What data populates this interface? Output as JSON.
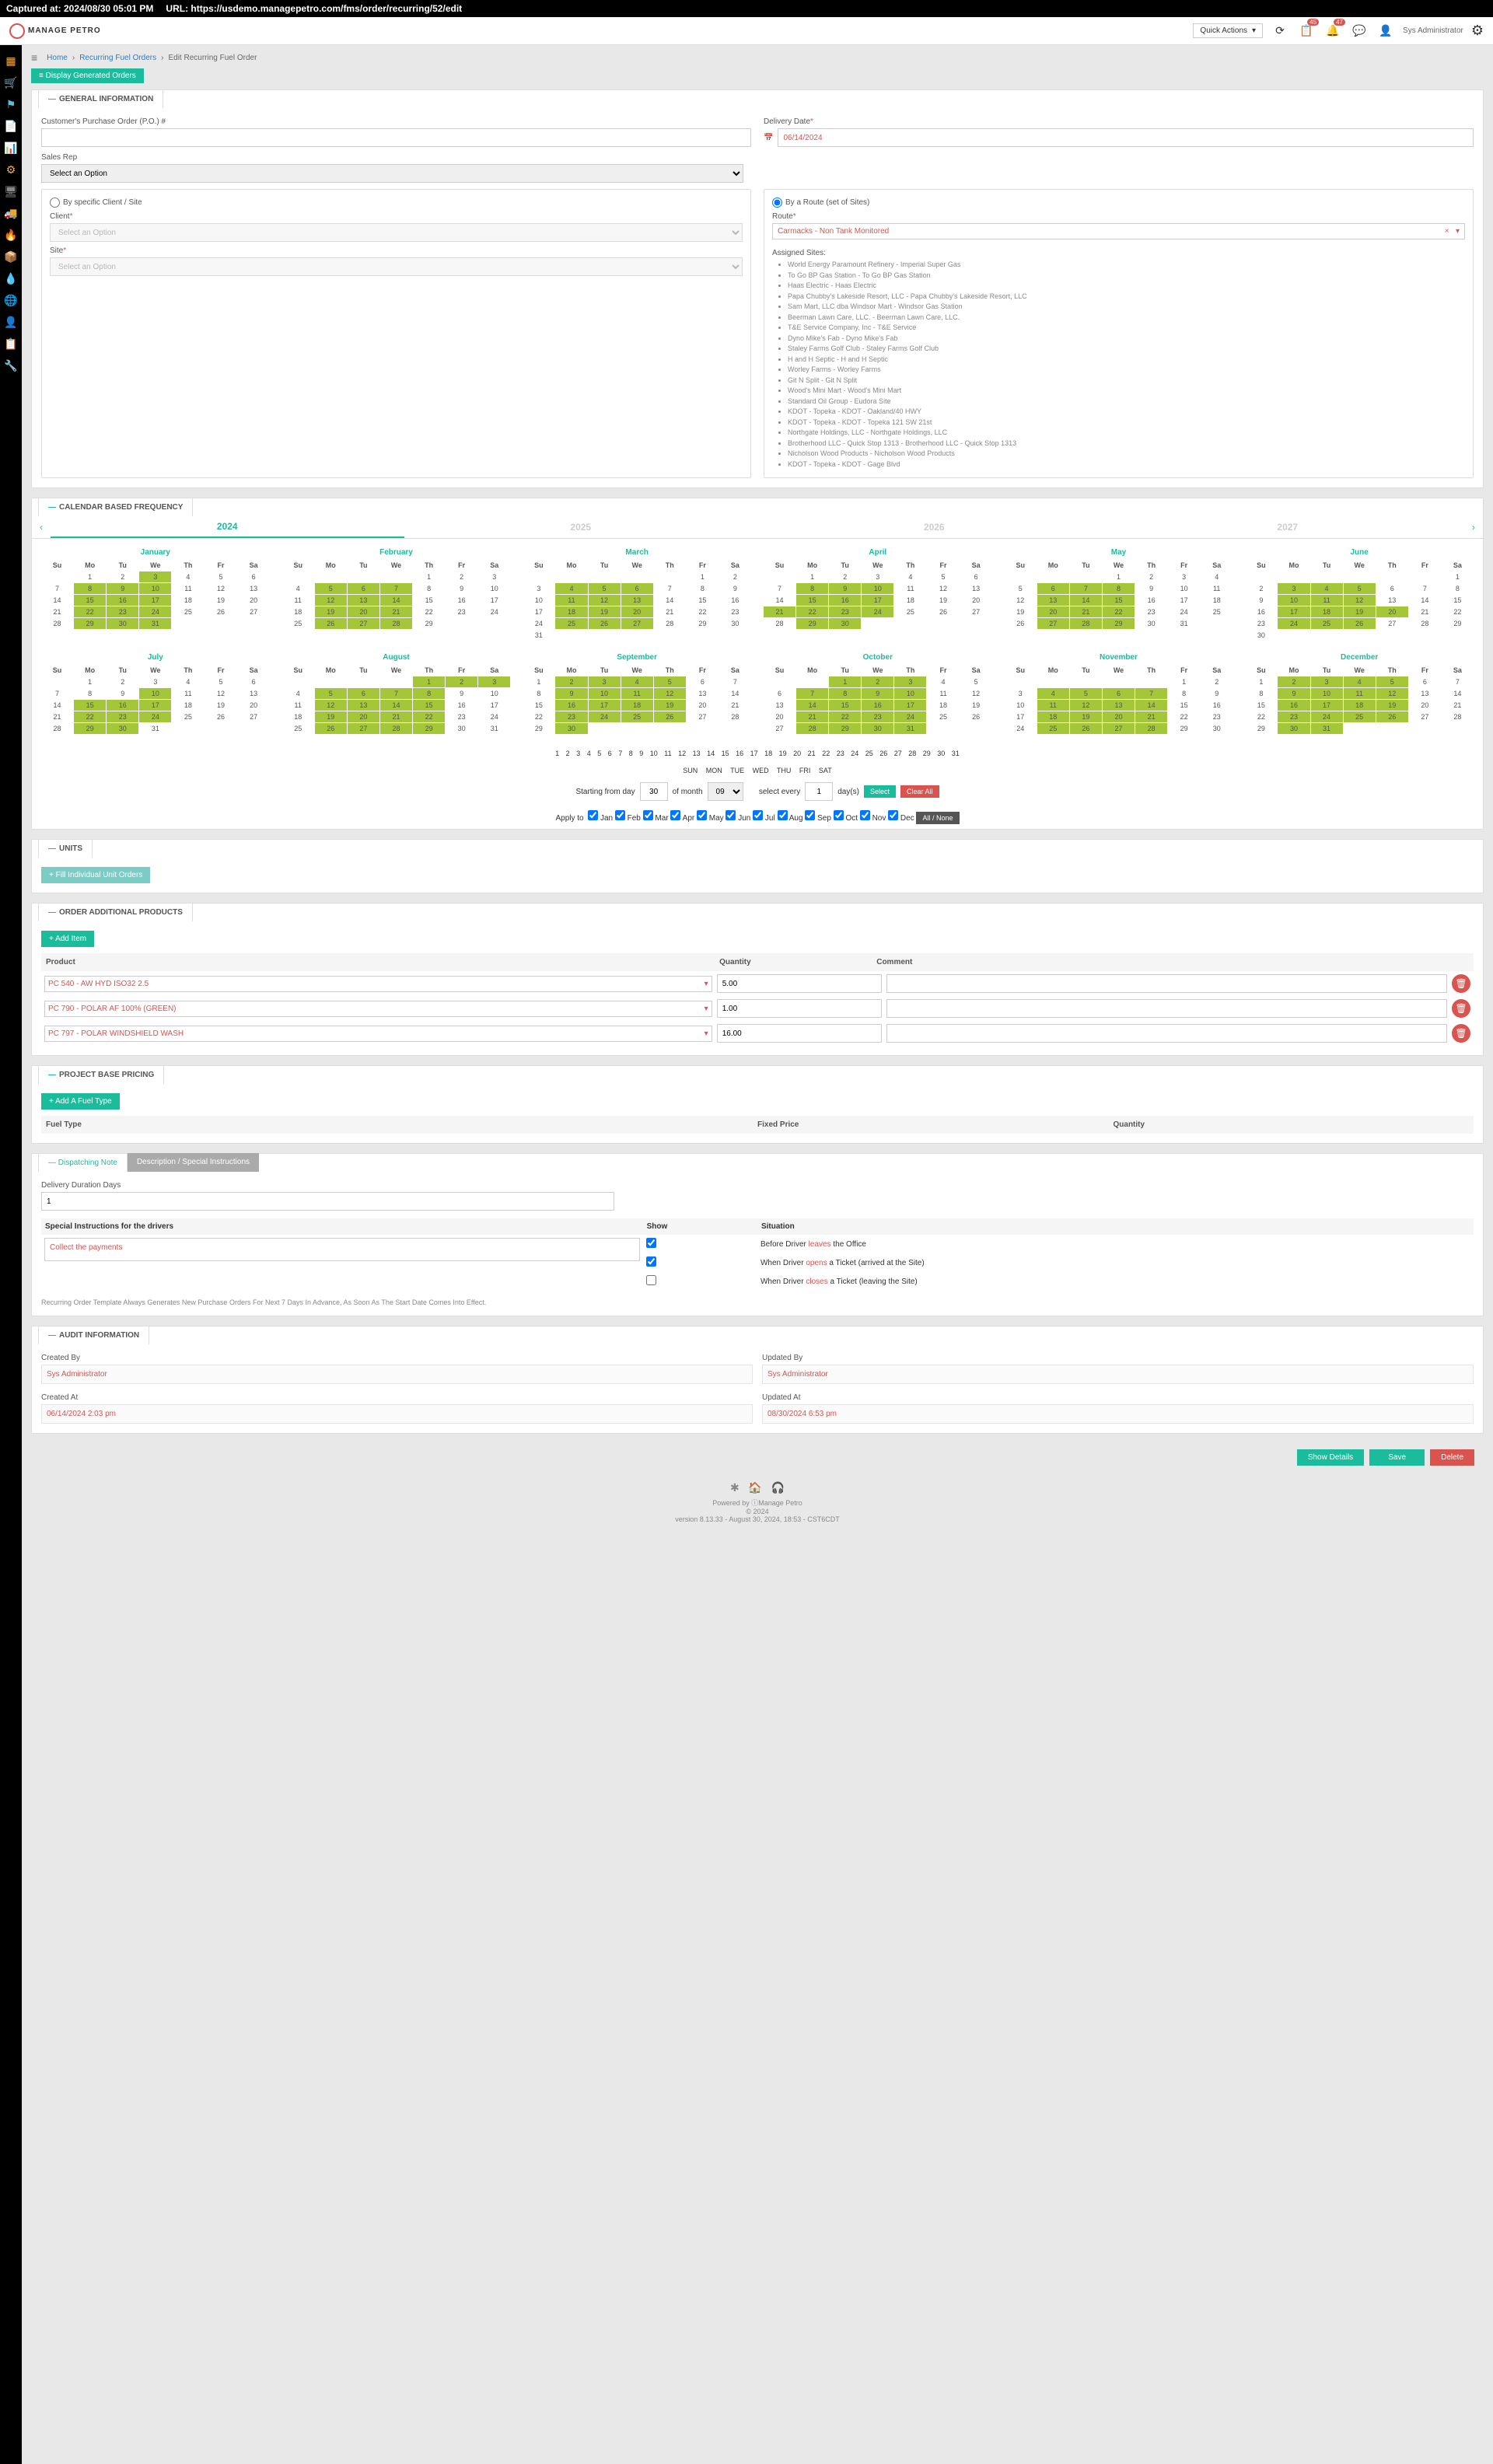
{
  "capture": {
    "time": "Captured at: 2024/08/30 05:01 PM",
    "url": "URL: https://usdemo.managepetro.com/fms/order/recurring/52/edit"
  },
  "header": {
    "logo": "MANAGE PETRO",
    "quick_actions": "Quick Actions",
    "badge1": "45",
    "badge2": "47",
    "user": "Sys Administrator"
  },
  "breadcrumb": {
    "home": "Home",
    "parent": "Recurring Fuel Orders",
    "current": "Edit Recurring Fuel Order"
  },
  "buttons": {
    "display": "≡ Display Generated Orders",
    "select": "Select",
    "clear": "Clear All",
    "allnone": "All / None",
    "fill": "+ Fill Individual Unit Orders",
    "additem": "+ Add Item",
    "addfuel": "+ Add A Fuel Type",
    "show": "Show Details",
    "save": "Save",
    "delete": "Delete"
  },
  "sections": {
    "general": "GENERAL INFORMATION",
    "calendar": "CALENDAR BASED FREQUENCY",
    "units": "UNITS",
    "additional": "ORDER ADDITIONAL PRODUCTS",
    "pricing": "PROJECT BASE PRICING",
    "dispatch": "Dispatching Note",
    "desc": "Description / Special Instructions",
    "audit": "AUDIT INFORMATION"
  },
  "general": {
    "po_label": "Customer's Purchase Order (P.O.) #",
    "po_value": "",
    "delivery_label": "Delivery Date",
    "delivery_value": "06/14/2024",
    "sales_label": "Sales Rep",
    "sales_placeholder": "Select an Option",
    "by_client": "By specific Client / Site",
    "by_route": "By a Route (set of Sites)",
    "client_label": "Client",
    "site_label": "Site",
    "select_placeholder": "Select an Option",
    "route_label": "Route",
    "route_value": "Carmacks - Non Tank Monitored",
    "assigned_label": "Assigned Sites:"
  },
  "sites": [
    "World Energy Paramount Refinery - Imperial Super Gas",
    "To Go BP Gas Station - To Go BP Gas Station",
    "Haas Electric - Haas Electric",
    "Papa Chubby's Lakeside Resort, LLC - Papa Chubby's Lakeside Resort, LLC",
    "Sam Mart, LLC dba Windsor Mart - Windsor Gas Station",
    "Beerman Lawn Care, LLC. - Beerman Lawn Care, LLC.",
    "T&E Service Company, Inc - T&E Service",
    "Dyno Mike's Fab - Dyno Mike's Fab",
    "Staley Farms Golf Club - Staley Farms Golf Club",
    "H and H Septic - H and H Septic",
    "Worley Farms - Worley Farms",
    "Git N Split - Git N Split",
    "Wood's Mini Mart - Wood's Mini Mart",
    "Standard Oil Group - Eudora Site",
    "KDOT - Topeka - KDOT - Oakland/40 HWY",
    "KDOT - Topeka - KDOT - Topeka 121 SW 21st",
    "Northgate Holdings, LLC - Northgate Holdings, LLC",
    "Brotherhood LLC - Quick Stop 1313 - Brotherhood LLC - Quick Stop 1313",
    "Nicholson Wood Products - Nicholson Wood Products",
    "KDOT - Topeka - KDOT - Gage Blvd"
  ],
  "years": [
    "2024",
    "2025",
    "2026",
    "2027"
  ],
  "months": [
    "January",
    "February",
    "March",
    "April",
    "May",
    "June",
    "July",
    "August",
    "September",
    "October",
    "November",
    "December"
  ],
  "dow": [
    "Su",
    "Mo",
    "Tu",
    "We",
    "Th",
    "Fr",
    "Sa"
  ],
  "month_cfg": [
    {
      "start": 1,
      "days": 31,
      "hl": [
        3,
        8,
        9,
        10,
        15,
        16,
        17,
        22,
        23,
        24,
        29,
        30,
        31
      ]
    },
    {
      "start": 4,
      "days": 29,
      "hl": [
        5,
        6,
        7,
        12,
        13,
        14,
        19,
        20,
        21,
        26,
        27,
        28
      ]
    },
    {
      "start": 5,
      "days": 31,
      "hl": [
        4,
        5,
        6,
        11,
        12,
        13,
        18,
        19,
        20,
        25,
        26,
        27
      ]
    },
    {
      "start": 1,
      "days": 30,
      "hl": [
        8,
        9,
        10,
        15,
        16,
        17,
        21,
        22,
        23,
        24,
        29,
        30
      ]
    },
    {
      "start": 3,
      "days": 31,
      "hl": [
        6,
        7,
        8,
        13,
        14,
        15,
        20,
        21,
        22,
        27,
        28,
        29
      ]
    },
    {
      "start": 6,
      "days": 30,
      "hl": [
        3,
        4,
        5,
        10,
        11,
        12,
        17,
        18,
        19,
        20,
        24,
        25,
        26
      ]
    },
    {
      "start": 1,
      "days": 31,
      "hl": [
        10,
        15,
        16,
        17,
        22,
        23,
        24,
        29,
        30
      ]
    },
    {
      "start": 4,
      "days": 31,
      "hl": [
        1,
        2,
        3,
        5,
        6,
        7,
        8,
        12,
        13,
        14,
        15,
        19,
        20,
        21,
        22,
        26,
        27,
        28,
        29
      ]
    },
    {
      "start": 0,
      "days": 30,
      "hl": [
        2,
        3,
        4,
        5,
        9,
        10,
        11,
        12,
        16,
        17,
        18,
        19,
        23,
        24,
        25,
        26,
        30
      ]
    },
    {
      "start": 2,
      "days": 31,
      "hl": [
        1,
        2,
        3,
        7,
        8,
        9,
        10,
        14,
        15,
        16,
        17,
        21,
        22,
        23,
        24,
        28,
        29,
        30,
        31
      ]
    },
    {
      "start": 5,
      "days": 30,
      "hl": [
        4,
        5,
        6,
        7,
        11,
        12,
        13,
        14,
        18,
        19,
        20,
        21,
        25,
        26,
        27,
        28
      ]
    },
    {
      "start": 0,
      "days": 31,
      "hl": [
        2,
        3,
        4,
        5,
        9,
        10,
        11,
        12,
        16,
        17,
        18,
        19,
        23,
        24,
        25,
        26,
        30,
        31
      ]
    }
  ],
  "daynums": "1 2 3 4 5 6 7 8 9 10 11 12 13 14 15 16 17 18 19 20 21 22 23 24 25 26 27 28 29 30 31",
  "dowrow": "SUN MON TUE WED THU FRI SAT",
  "freq": {
    "starting": "Starting from day",
    "day_val": "30",
    "of_month": "of month",
    "month_val": "09",
    "select_every": "select every",
    "every_val": "1",
    "days": "day(s)"
  },
  "apply": {
    "label": "Apply to",
    "months": [
      "Jan",
      "Feb",
      "Mar",
      "Apr",
      "May",
      "Jun",
      "Jul",
      "Aug",
      "Sep",
      "Oct",
      "Nov",
      "Dec"
    ]
  },
  "products": {
    "head_product": "Product",
    "head_qty": "Quantity",
    "head_comment": "Comment",
    "rows": [
      {
        "name": "PC 540 - AW HYD ISO32 2.5",
        "qty": "5.00"
      },
      {
        "name": "PC 790 - POLAR AF 100% (GREEN)",
        "qty": "1.00"
      },
      {
        "name": "PC 797 - POLAR WINDSHIELD WASH",
        "qty": "16.00"
      }
    ]
  },
  "pricing": {
    "fuel": "Fuel Type",
    "fixed": "Fixed Price",
    "qty": "Quantity"
  },
  "dispatch": {
    "duration_label": "Delivery Duration Days",
    "duration_val": "1",
    "instr_label": "Special Instructions for the drivers",
    "instr_val": "Collect the payments",
    "show": "Show",
    "situation": "Situation",
    "s1a": "Before Driver ",
    "s1b": "leaves",
    "s1c": " the Office",
    "s2a": "When Driver ",
    "s2b": "opens",
    "s2c": " a Ticket (arrived at the Site)",
    "s3a": "When Driver ",
    "s3b": "closes",
    "s3c": " a Ticket (leaving the Site)",
    "note": "Recurring Order Template Always Generates New Purchase Orders For Next 7 Days In Advance, As Soon As The Start Date Comes Into Effect."
  },
  "audit": {
    "created_by": "Created By",
    "created_by_val": "Sys Administrator",
    "updated_by": "Updated By",
    "updated_by_val": "Sys Administrator",
    "created_at": "Created At",
    "created_at_val": "06/14/2024 2:03 pm",
    "updated_at": "Updated At",
    "updated_at_val": "08/30/2024 6:53 pm"
  },
  "footer": {
    "powered": "Powered by ⓘManage Petro",
    "copy": "© 2024",
    "version": "version 8.13.33 - August 30, 2024, 18:53 - CST6CDT"
  }
}
